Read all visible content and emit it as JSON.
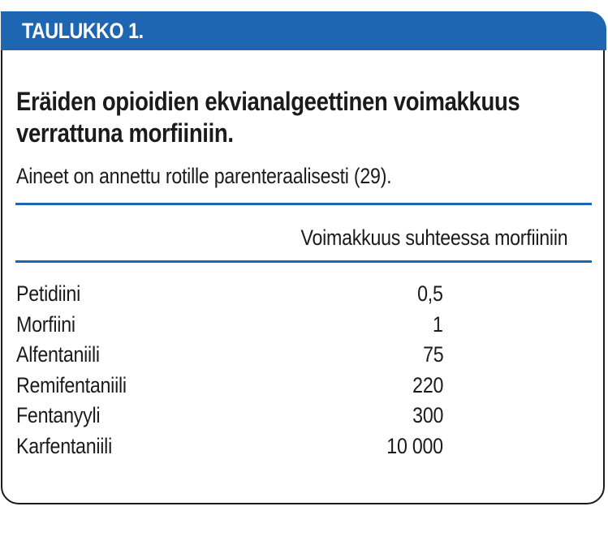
{
  "header": {
    "tab_label": "TAULUKKO 1."
  },
  "title": {
    "line1": "Eräiden opioidien ekvianalgeettinen voimakkuus",
    "line2": "verrattuna morfiiniin."
  },
  "subtitle": "Aineet on annettu rotille parenteraalisesti (29).",
  "table": {
    "column_header": "Voimakkuus suhteessa morfiiniin",
    "rows": [
      {
        "name": "Petidiini",
        "value": "0,5"
      },
      {
        "name": "Morfiini",
        "value": "1"
      },
      {
        "name": "Alfentaniili",
        "value": "75"
      },
      {
        "name": "Remifentaniili",
        "value": "220"
      },
      {
        "name": "Fentanyyli",
        "value": "300"
      },
      {
        "name": "Karfentaniili",
        "value": "10 000"
      }
    ]
  },
  "colors": {
    "accent": "#1f66b2",
    "text": "#1b1b1b",
    "border": "#1b1b1b",
    "background": "#ffffff"
  }
}
